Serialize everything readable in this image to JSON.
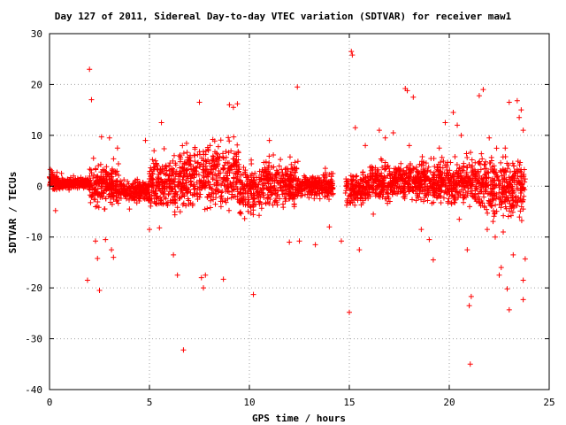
{
  "chart_data": {
    "type": "scatter",
    "title": "Day 127 of 2011, Sidereal Day-to-day VTEC variation (SDTVAR) for receiver maw1",
    "xlabel": "GPS time / hours",
    "ylabel": "SDTVAR / TECUs",
    "xlim": [
      0,
      25
    ],
    "ylim": [
      -40,
      30
    ],
    "xticks": [
      0,
      5,
      10,
      15,
      20,
      25
    ],
    "yticks": [
      -40,
      -30,
      -20,
      -10,
      0,
      10,
      20,
      30
    ],
    "xtick_labels": [
      "0",
      "5",
      "10",
      "15",
      "20",
      "25"
    ],
    "ytick_labels": [
      "-40",
      "-30",
      "-20",
      "-10",
      "0",
      "10",
      "20",
      "30"
    ],
    "grid": true,
    "marker": "plus",
    "series_color": "#ff0000",
    "dense_bands": [
      {
        "x": [
          0.0,
          0.4
        ],
        "y_lo": -2,
        "y_hi": 4
      },
      {
        "x": [
          0.4,
          2.0
        ],
        "y_lo": -1,
        "y_hi": 2
      },
      {
        "x": [
          2.0,
          3.5
        ],
        "y_lo": -6,
        "y_hi": 6
      },
      {
        "x": [
          3.5,
          5.0
        ],
        "y_lo": -4,
        "y_hi": 2
      },
      {
        "x": [
          5.0,
          6.5
        ],
        "y_lo": -7,
        "y_hi": 8
      },
      {
        "x": [
          6.5,
          7.8
        ],
        "y_lo": -6,
        "y_hi": 10
      },
      {
        "x": [
          7.8,
          9.5
        ],
        "y_lo": -8,
        "y_hi": 12
      },
      {
        "x": [
          9.5,
          10.5
        ],
        "y_lo": -8,
        "y_hi": 6
      },
      {
        "x": [
          10.5,
          12.5
        ],
        "y_lo": -6,
        "y_hi": 7
      },
      {
        "x": [
          12.5,
          14.2
        ],
        "y_lo": -3,
        "y_hi": 3
      },
      {
        "x": [
          14.8,
          16.0
        ],
        "y_lo": -5,
        "y_hi": 4
      },
      {
        "x": [
          16.0,
          18.5
        ],
        "y_lo": -4,
        "y_hi": 6
      },
      {
        "x": [
          18.5,
          21.5
        ],
        "y_lo": -5,
        "y_hi": 7
      },
      {
        "x": [
          21.5,
          23.8
        ],
        "y_lo": -8,
        "y_hi": 8
      }
    ],
    "points": [
      [
        2.0,
        23.0
      ],
      [
        2.1,
        17.0
      ],
      [
        2.2,
        5.5
      ],
      [
        2.3,
        -10.8
      ],
      [
        2.4,
        -14.2
      ],
      [
        2.5,
        -20.5
      ],
      [
        2.6,
        9.7
      ],
      [
        2.8,
        -10.5
      ],
      [
        3.0,
        9.5
      ],
      [
        3.1,
        -12.5
      ],
      [
        3.2,
        -14.0
      ],
      [
        3.4,
        7.5
      ],
      [
        1.9,
        -18.5
      ],
      [
        0.3,
        -4.8
      ],
      [
        4.8,
        9.0
      ],
      [
        5.0,
        -8.5
      ],
      [
        5.5,
        -8.2
      ],
      [
        5.6,
        12.5
      ],
      [
        6.2,
        -13.5
      ],
      [
        6.4,
        -17.5
      ],
      [
        6.7,
        -32.2
      ],
      [
        7.5,
        16.5
      ],
      [
        7.6,
        -18.0
      ],
      [
        7.7,
        -20.0
      ],
      [
        7.8,
        -17.5
      ],
      [
        8.7,
        -18.3
      ],
      [
        9.0,
        16.0
      ],
      [
        9.2,
        15.5
      ],
      [
        9.4,
        16.2
      ],
      [
        10.2,
        -21.3
      ],
      [
        12.0,
        -11.0
      ],
      [
        12.4,
        19.5
      ],
      [
        12.5,
        -10.8
      ],
      [
        13.3,
        -11.5
      ],
      [
        14.0,
        -8.0
      ],
      [
        14.6,
        -10.8
      ],
      [
        15.1,
        26.5
      ],
      [
        15.15,
        25.8
      ],
      [
        15.0,
        -24.8
      ],
      [
        15.3,
        11.5
      ],
      [
        15.5,
        -12.5
      ],
      [
        15.8,
        8.0
      ],
      [
        16.5,
        11.0
      ],
      [
        16.8,
        9.5
      ],
      [
        17.2,
        10.5
      ],
      [
        17.8,
        19.2
      ],
      [
        17.9,
        18.8
      ],
      [
        18.2,
        17.5
      ],
      [
        18.6,
        -8.5
      ],
      [
        19.0,
        -10.5
      ],
      [
        19.2,
        -14.5
      ],
      [
        19.8,
        12.5
      ],
      [
        20.2,
        14.5
      ],
      [
        20.4,
        12.0
      ],
      [
        20.6,
        10.0
      ],
      [
        20.9,
        -12.5
      ],
      [
        21.0,
        -23.5
      ],
      [
        21.05,
        -35.0
      ],
      [
        21.1,
        -21.7
      ],
      [
        21.5,
        17.8
      ],
      [
        21.7,
        19.0
      ],
      [
        21.9,
        -8.5
      ],
      [
        22.3,
        -10.0
      ],
      [
        22.5,
        -17.5
      ],
      [
        22.6,
        -16.0
      ],
      [
        22.9,
        -20.2
      ],
      [
        23.0,
        -24.3
      ],
      [
        23.0,
        16.5
      ],
      [
        23.2,
        -13.5
      ],
      [
        23.4,
        16.8
      ],
      [
        23.5,
        13.5
      ],
      [
        23.6,
        15.0
      ],
      [
        23.7,
        -18.5
      ],
      [
        23.7,
        -22.3
      ],
      [
        23.8,
        -14.3
      ],
      [
        23.7,
        11.0
      ],
      [
        22.0,
        9.5
      ],
      [
        22.8,
        7.5
      ],
      [
        0.6,
        2.5
      ],
      [
        1.2,
        2.0
      ],
      [
        4.0,
        -4.5
      ],
      [
        4.5,
        -2.5
      ],
      [
        11.0,
        9.0
      ],
      [
        13.8,
        3.5
      ],
      [
        14.1,
        2.5
      ],
      [
        16.2,
        -5.5
      ],
      [
        18.0,
        8.0
      ],
      [
        19.5,
        7.5
      ],
      [
        20.5,
        -6.5
      ],
      [
        22.7,
        -9.0
      ]
    ]
  }
}
